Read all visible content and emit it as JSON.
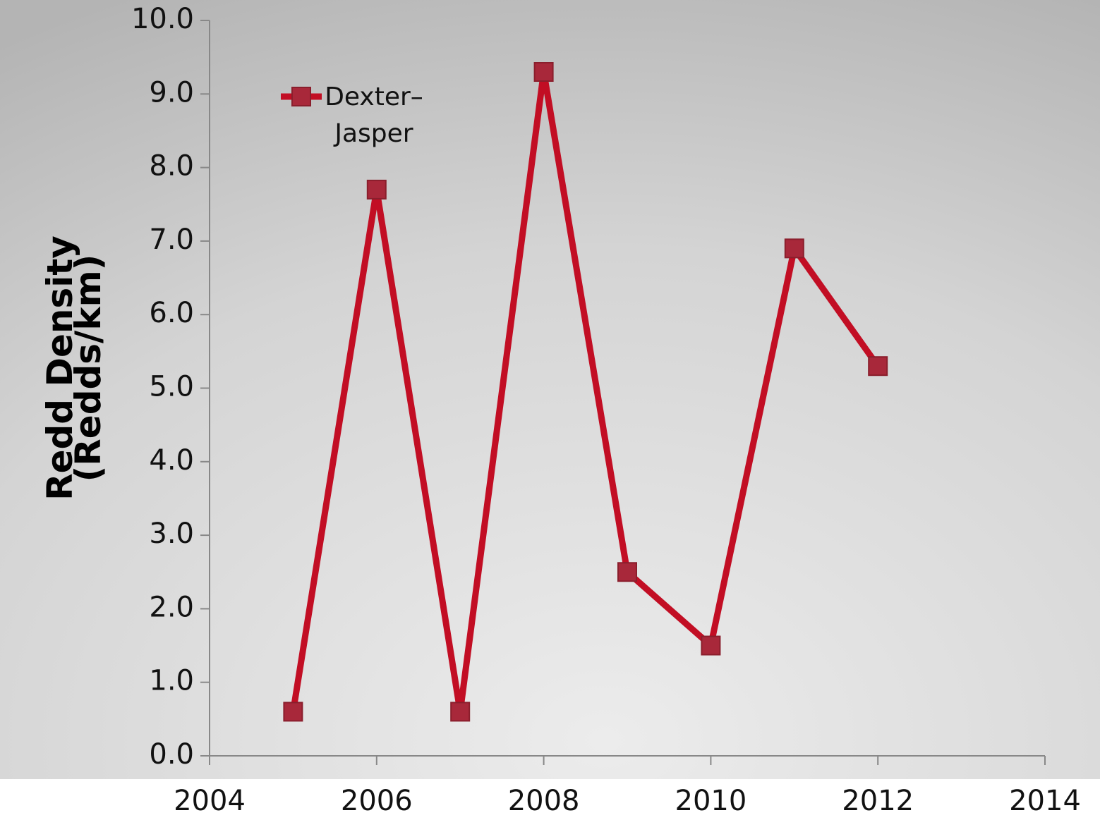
{
  "chart_data": {
    "type": "line",
    "ylabel": [
      "Redd Density",
      "(Redds/km)"
    ],
    "x": [
      2005,
      2006,
      2007,
      2008,
      2009,
      2010,
      2011,
      2012
    ],
    "series": [
      {
        "name": "Dexter–Jasper",
        "color": "#c20e24",
        "marker_color": "#a8283a",
        "values": [
          0.6,
          7.7,
          0.6,
          9.3,
          2.5,
          1.5,
          6.9,
          5.3
        ]
      }
    ],
    "xlim": [
      2004,
      2014
    ],
    "xticks": [
      2004,
      2006,
      2008,
      2010,
      2012,
      2014
    ],
    "ylim": [
      0,
      10
    ],
    "yticks": [
      {
        "value": 0,
        "label": "0.0"
      },
      {
        "value": 1,
        "label": "1.0"
      },
      {
        "value": 2,
        "label": "2.0"
      },
      {
        "value": 3,
        "label": "3.0"
      },
      {
        "value": 4,
        "label": "4.0"
      },
      {
        "value": 5,
        "label": "5.0"
      },
      {
        "value": 6,
        "label": "6.0"
      },
      {
        "value": 7,
        "label": "7.0"
      },
      {
        "value": 8,
        "label": "8.0"
      },
      {
        "value": 9,
        "label": "9.0"
      },
      {
        "value": 10,
        "label": "10.0"
      }
    ],
    "legend": "upper left"
  }
}
